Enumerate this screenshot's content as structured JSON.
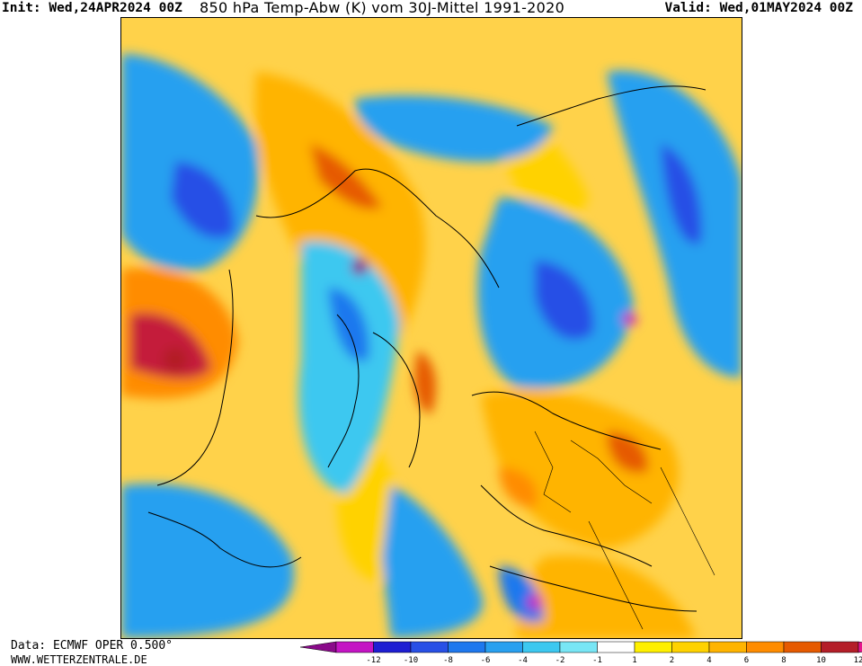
{
  "header": {
    "init_label": "Init:",
    "init_value": "Wed,24APR2024 00Z",
    "title": "850 hPa Temp-Abw (K) vom 30J-Mittel 1991-2020",
    "valid_label": "Valid:",
    "valid_value": "Wed,01MAY2024 00Z"
  },
  "footer": {
    "data_source": "Data: ECMWF OPER 0.500°",
    "website": "WWW.WETTERZENTRALE.DE"
  },
  "legend": {
    "tick_labels": [
      "-12",
      "-10",
      "-8",
      "-6",
      "-4",
      "-2",
      "-1",
      "1",
      "2",
      "4",
      "6",
      "8",
      "10",
      "12"
    ],
    "colors": [
      "#8a0a8a",
      "#c414c4",
      "#1e1ed2",
      "#2850e6",
      "#1e78ee",
      "#28a0f0",
      "#3cc8f0",
      "#78e6f5",
      "#ffffff",
      "#fff000",
      "#ffd200",
      "#ffb400",
      "#ff8c00",
      "#e65a00",
      "#b41e28",
      "#e6148c"
    ]
  },
  "map": {
    "field": "850 hPa temperature anomaly",
    "projection": "polar stereographic",
    "icons": [
      "coastline-lines",
      "country-borders"
    ]
  }
}
